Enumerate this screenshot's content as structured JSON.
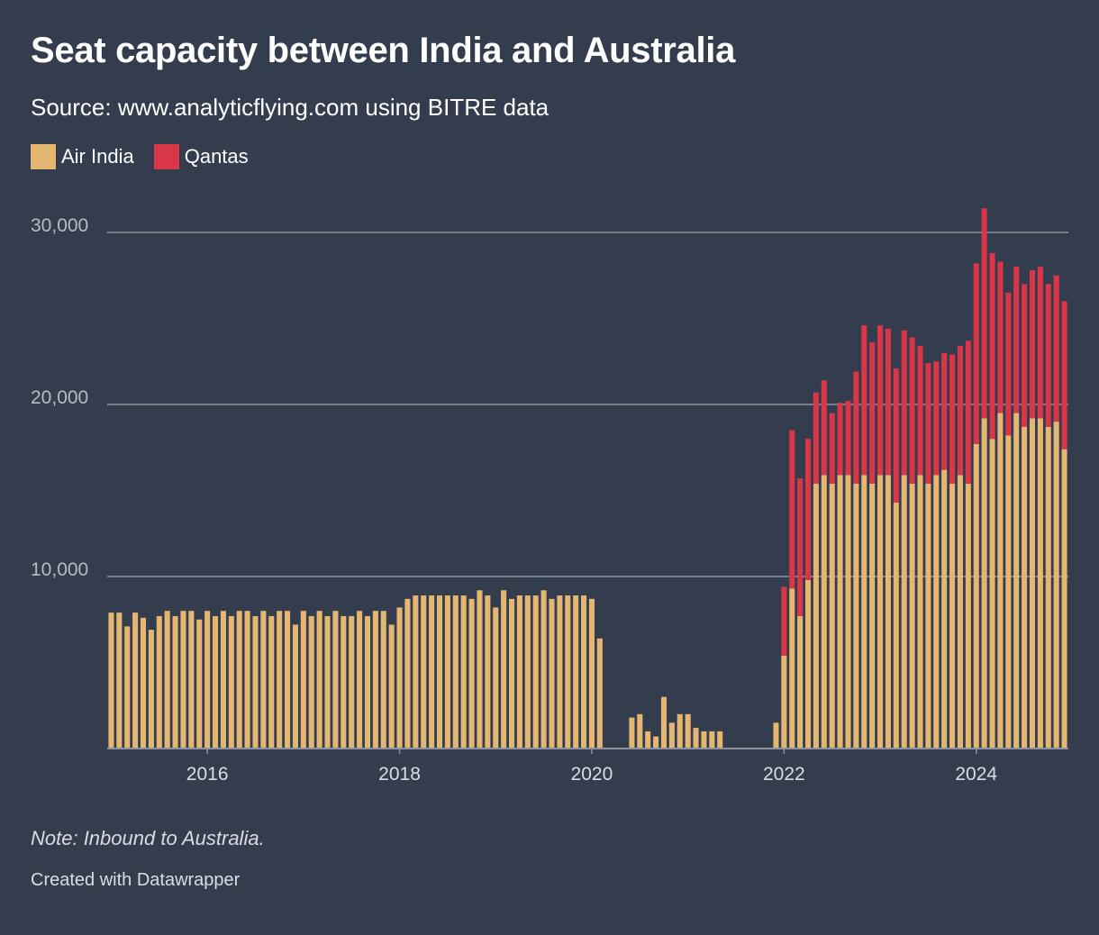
{
  "chart_data": {
    "type": "bar",
    "stacked": true,
    "title": "Seat capacity between India and Australia",
    "subtitle": "Source: www.analyticflying.com using BITRE data",
    "note": "Note: Inbound to Australia.",
    "credit": "Created with Datawrapper",
    "legend_position": "top-left",
    "grid": true,
    "x_start": "2015-01",
    "x_end": "2024-11",
    "x_ticks": [
      "2016",
      "2018",
      "2020",
      "2022",
      "2024"
    ],
    "y_ticks": [
      10000,
      20000,
      30000
    ],
    "y_tick_labels": [
      "10,000",
      "20,000",
      "30,000"
    ],
    "ylim": [
      0,
      31500
    ],
    "series": [
      {
        "name": "Air India",
        "color": "#e4b672",
        "values": [
          7900,
          7900,
          7100,
          7900,
          7600,
          6900,
          7700,
          8000,
          7700,
          8000,
          8000,
          7500,
          8000,
          7700,
          8000,
          7700,
          8000,
          8000,
          7700,
          8000,
          7700,
          8000,
          8000,
          7200,
          8000,
          7700,
          8000,
          7700,
          8000,
          7700,
          7700,
          8000,
          7700,
          8000,
          8000,
          7200,
          8200,
          8700,
          8900,
          8900,
          8900,
          8900,
          8900,
          8900,
          8900,
          8700,
          9200,
          8900,
          8200,
          9200,
          8700,
          8900,
          8900,
          8900,
          9200,
          8700,
          8900,
          8900,
          8900,
          8900,
          8700,
          6400,
          0,
          0,
          0,
          1800,
          2000,
          1000,
          700,
          3000,
          1500,
          2000,
          2000,
          1200,
          1000,
          1000,
          1000,
          0,
          0,
          0,
          0,
          0,
          0,
          1500,
          5400,
          9300,
          7700,
          9800,
          15400,
          15900,
          15400,
          15900,
          15900,
          15400,
          15900,
          15400,
          15900,
          15900,
          14300,
          15900,
          15400,
          15900,
          15400,
          15900,
          16200,
          15400,
          15900,
          15400,
          17700,
          19200,
          18000,
          19500,
          18200,
          19500,
          18700,
          19200,
          19200,
          18700,
          19000,
          17400
        ]
      },
      {
        "name": "Qantas",
        "color": "#d93648",
        "values": [
          0,
          0,
          0,
          0,
          0,
          0,
          0,
          0,
          0,
          0,
          0,
          0,
          0,
          0,
          0,
          0,
          0,
          0,
          0,
          0,
          0,
          0,
          0,
          0,
          0,
          0,
          0,
          0,
          0,
          0,
          0,
          0,
          0,
          0,
          0,
          0,
          0,
          0,
          0,
          0,
          0,
          0,
          0,
          0,
          0,
          0,
          0,
          0,
          0,
          0,
          0,
          0,
          0,
          0,
          0,
          0,
          0,
          0,
          0,
          0,
          0,
          0,
          0,
          0,
          0,
          0,
          0,
          0,
          0,
          0,
          0,
          0,
          0,
          0,
          0,
          0,
          0,
          0,
          0,
          0,
          0,
          0,
          0,
          0,
          4000,
          9200,
          8000,
          8200,
          5300,
          5500,
          4100,
          4200,
          4300,
          6500,
          8700,
          8200,
          8700,
          8500,
          7800,
          8400,
          8500,
          7500,
          7000,
          6600,
          6800,
          7500,
          7500,
          8300,
          10500,
          12200,
          10800,
          8800,
          8300,
          8500,
          8300,
          8600,
          8800,
          8300,
          8500,
          8600
        ]
      }
    ]
  }
}
